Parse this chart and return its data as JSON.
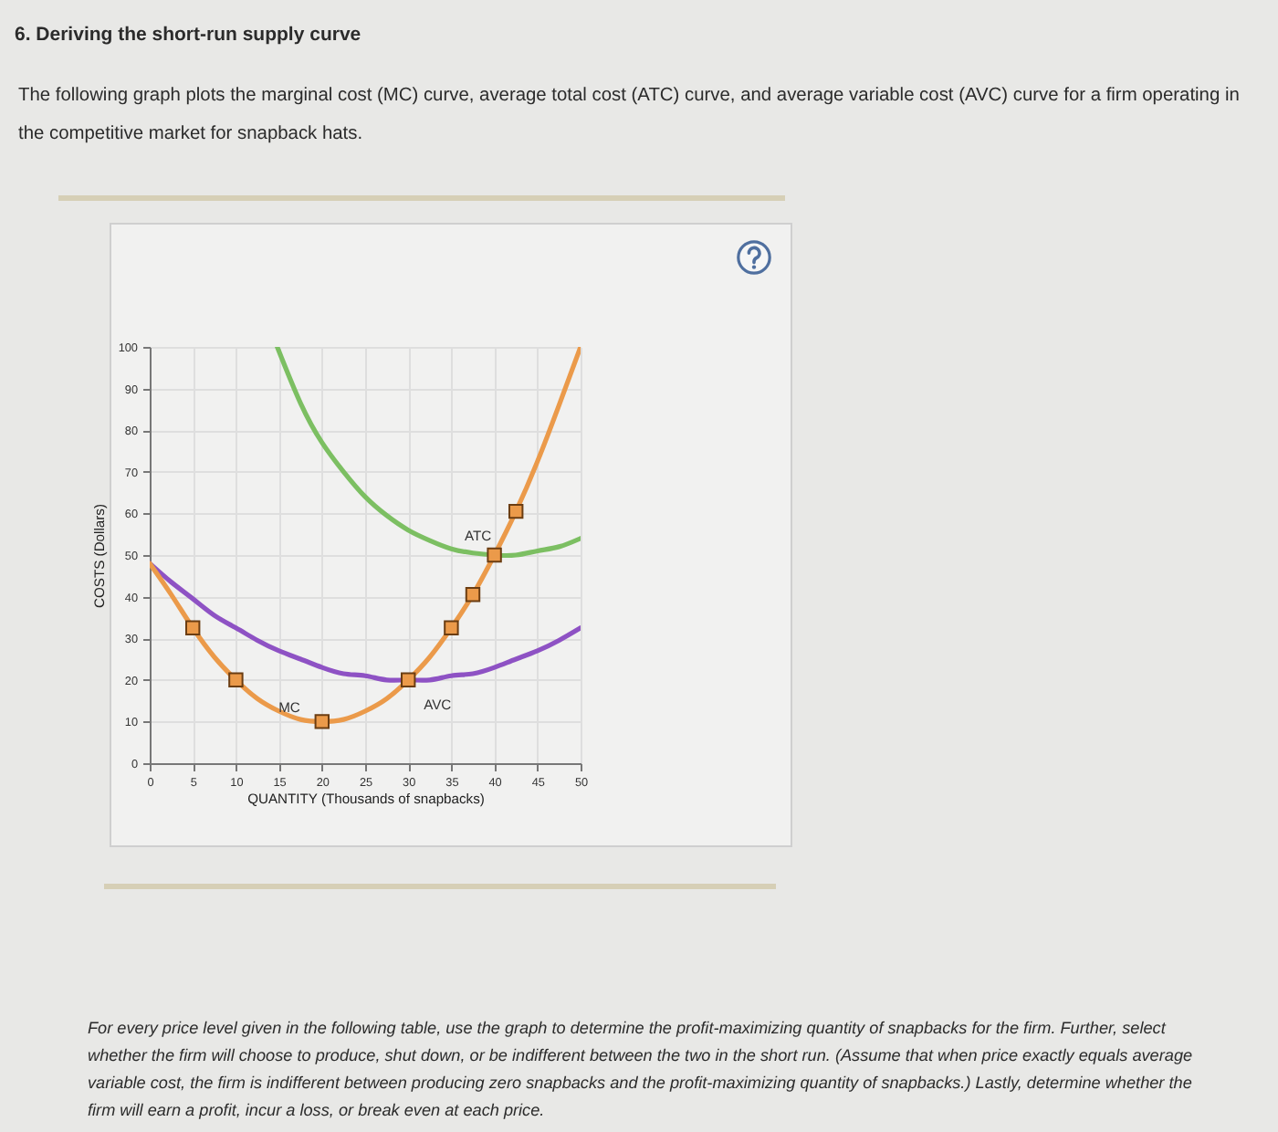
{
  "chart_data": {
    "type": "line",
    "title": "6. Deriving the short-run supply curve",
    "subtitle": "The following graph plots the marginal cost (MC) curve, average total cost (ATC) curve, and average variable cost (AVC) curve for a firm operating in the competitive market for snapback hats.",
    "xlabel": "QUANTITY (Thousands of snapbacks)",
    "ylabel": "COSTS (Dollars)",
    "annotations": [
      "For every price level given in the following table, use the graph to determine the profit-maximizing quantity of snapbacks for the firm. Further, select whether the firm will choose to produce, shut down, or be indifferent between the two in the short run. (Assume that when price exactly equals average variable cost, the firm is indifferent between producing zero snapbacks and the profit-maximizing quantity of snapbacks.) Lastly, determine whether the firm will earn a profit, incur a loss, or break even at each price."
    ],
    "xlim": [
      0,
      50
    ],
    "xticks": [
      0,
      5,
      10,
      15,
      20,
      25,
      30,
      35,
      40,
      45,
      50
    ],
    "ylim": [
      0,
      100
    ],
    "yticks": [
      0,
      10,
      20,
      30,
      40,
      50,
      60,
      70,
      80,
      90,
      100
    ],
    "grid": true,
    "series": [
      {
        "name": "ATC",
        "color": "#7cbf62",
        "x": [
          14.8,
          17.5,
          20,
          22.5,
          25,
          27.5,
          30,
          32.5,
          35,
          37.5,
          40,
          42.5,
          45,
          47.5,
          50
        ],
        "values": [
          100,
          86.5,
          77,
          70,
          64,
          59.5,
          56,
          53.5,
          51.5,
          50.5,
          50,
          50,
          51,
          52,
          54
        ]
      },
      {
        "name": "AVC",
        "color": "#8e52c4",
        "x": [
          0,
          2.5,
          5,
          7.5,
          10,
          12.5,
          15,
          17.5,
          20,
          22.5,
          25,
          27.5,
          30,
          32.5,
          35,
          37.5,
          40,
          42.5,
          45,
          47.5,
          50
        ],
        "values": [
          48,
          43.5,
          39.5,
          35.5,
          32.5,
          29.5,
          27,
          25,
          23,
          21.5,
          21,
          20,
          20,
          20,
          21,
          21.5,
          23,
          25,
          27,
          29.5,
          32.5
        ]
      },
      {
        "name": "MC",
        "color": "#eb9a4a",
        "x": [
          0,
          2.5,
          5,
          7.5,
          10,
          12.5,
          15,
          17.5,
          20,
          22.5,
          25,
          27.5,
          30,
          32.5,
          35,
          37.5,
          40,
          42.5,
          45,
          47.5,
          50
        ],
        "values": [
          48,
          40.5,
          32.5,
          25.5,
          20,
          15.5,
          12.5,
          10.5,
          10,
          10.5,
          12.5,
          15.5,
          20,
          25.5,
          32.5,
          40.5,
          50,
          60.5,
          72.5,
          86,
          100
        ]
      },
      {
        "type": "scatter",
        "marker": "square",
        "color": "#eb9a4a",
        "x": [
          5,
          10,
          20,
          30,
          35,
          37.5,
          40,
          42.5
        ],
        "values": [
          32.5,
          20,
          10,
          20,
          32.5,
          40.5,
          50,
          60.5
        ]
      }
    ]
  }
}
